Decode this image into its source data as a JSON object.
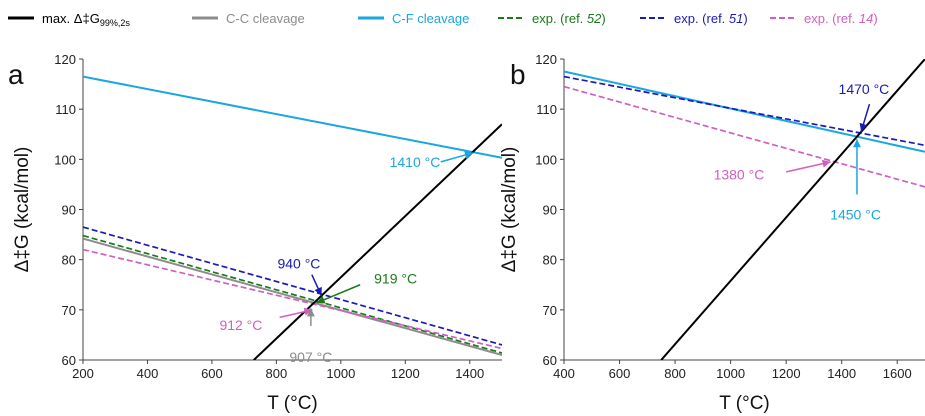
{
  "legend": [
    {
      "key": "max",
      "label": "max. Δ‡G",
      "sub": "99%,2s",
      "color": "#000000",
      "dash": false
    },
    {
      "key": "cc",
      "label": "C-C cleavage",
      "color": "#8c8c8c",
      "dash": false
    },
    {
      "key": "cf",
      "label": "C-F cleavage",
      "color": "#1aa6e0",
      "dash": false
    },
    {
      "key": "e52",
      "label": "exp. (ref. ",
      "ref": "52",
      "color": "#1a7a1a",
      "dash": true
    },
    {
      "key": "e51",
      "label": "exp. (ref. ",
      "ref": "51",
      "color": "#1a1ab8",
      "dash": true
    },
    {
      "key": "e14",
      "label": "exp. (ref. ",
      "ref": "14",
      "color": "#d060c0",
      "dash": true
    }
  ],
  "legend_close": ")",
  "colors": {
    "max": "#000000",
    "cc": "#8c8c8c",
    "cf": "#1aa6e0",
    "e52": "#1a7a1a",
    "e51": "#1a1ab8",
    "e14": "#d060c0"
  },
  "chart_data": [
    {
      "type": "line",
      "panel_label": "a",
      "xlabel": "T (°C)",
      "ylabel": "Δ‡G (kcal/mol)",
      "xlim": [
        200,
        1500
      ],
      "ylim": [
        60,
        120
      ],
      "xticks": [
        200,
        400,
        600,
        800,
        1000,
        1200,
        1400
      ],
      "yticks": [
        60,
        70,
        80,
        90,
        100,
        110,
        120
      ],
      "series": [
        {
          "key": "cf",
          "x": [
            200,
            1500
          ],
          "y": [
            116.5,
            100.3
          ]
        },
        {
          "key": "e51",
          "x": [
            200,
            1500
          ],
          "y": [
            86.5,
            63.0
          ]
        },
        {
          "key": "e52",
          "x": [
            200,
            1500
          ],
          "y": [
            84.8,
            61.4
          ]
        },
        {
          "key": "cc",
          "x": [
            200,
            1500
          ],
          "y": [
            84.2,
            61.0
          ]
        },
        {
          "key": "e14",
          "x": [
            200,
            1500
          ],
          "y": [
            82.0,
            62.3
          ]
        },
        {
          "key": "max",
          "x": [
            730,
            1500
          ],
          "y": [
            60.0,
            107.0
          ]
        }
      ],
      "annotations": [
        {
          "text": "1410 °C",
          "color": "#1aa6e0",
          "ax": 1410,
          "ay": 101.3,
          "tx": 1230,
          "ty": 99.5,
          "arrow_from": [
            1310,
            99.5
          ]
        },
        {
          "text": "940 °C",
          "color": "#1a1ab8",
          "ax": 940,
          "ay": 72.8,
          "tx": 870,
          "ty": 79.2,
          "arrow_from": [
            910,
            77.0
          ]
        },
        {
          "text": "919 °C",
          "color": "#1a7a1a",
          "ax": 925,
          "ay": 71.4,
          "tx": 1170,
          "ty": 76.2,
          "arrow_from": [
            1060,
            75.0
          ]
        },
        {
          "text": "912 °C",
          "color": "#d060c0",
          "ax": 912,
          "ay": 70.0,
          "tx": 690,
          "ty": 67.0,
          "arrow_from": [
            810,
            68.5
          ]
        },
        {
          "text": "907 °C",
          "color": "#8c8c8c",
          "ax": 907,
          "ay": 70.3,
          "tx": 907,
          "ty": 60.6,
          "arrow_from": [
            907,
            66.8
          ]
        }
      ]
    },
    {
      "type": "line",
      "panel_label": "b",
      "xlabel": "T (°C)",
      "ylabel": "Δ‡G (kcal/mol)",
      "xlim": [
        400,
        1700
      ],
      "ylim": [
        60,
        120
      ],
      "xticks": [
        400,
        600,
        800,
        1000,
        1200,
        1400,
        1600
      ],
      "yticks": [
        60,
        70,
        80,
        90,
        100,
        110,
        120
      ],
      "series": [
        {
          "key": "cf",
          "x": [
            400,
            1700
          ],
          "y": [
            117.5,
            101.5
          ]
        },
        {
          "key": "e51",
          "x": [
            400,
            1700
          ],
          "y": [
            116.5,
            102.8
          ]
        },
        {
          "key": "e14",
          "x": [
            400,
            1700
          ],
          "y": [
            114.5,
            94.5
          ]
        },
        {
          "key": "max",
          "x": [
            750,
            1700
          ],
          "y": [
            60.0,
            120.0
          ]
        }
      ],
      "annotations": [
        {
          "text": "1470 °C",
          "color": "#1a1ab8",
          "ax": 1470,
          "ay": 105.5,
          "tx": 1480,
          "ty": 114.0,
          "arrow_from": [
            1500,
            111.0
          ]
        },
        {
          "text": "1380 °C",
          "color": "#d060c0",
          "ax": 1360,
          "ay": 99.5,
          "tx": 1030,
          "ty": 97.0,
          "arrow_from": [
            1200,
            97.5
          ]
        },
        {
          "text": "1450 °C",
          "color": "#1aa6e0",
          "ax": 1455,
          "ay": 104.0,
          "tx": 1450,
          "ty": 89.0,
          "arrow_from": [
            1455,
            93.0
          ]
        }
      ]
    }
  ]
}
